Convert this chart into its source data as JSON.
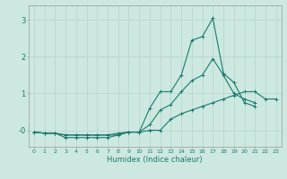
{
  "xlabel": "Humidex (Indice chaleur)",
  "bg_color": "#cce8e0",
  "grid_color": "#b8d8d0",
  "line_color": "#1a7a6e",
  "x_values": [
    0,
    1,
    2,
    3,
    4,
    5,
    6,
    7,
    8,
    9,
    10,
    11,
    12,
    13,
    14,
    15,
    16,
    17,
    18,
    19,
    20,
    21,
    22,
    23
  ],
  "line1": [
    -0.05,
    -0.08,
    -0.08,
    -0.13,
    -0.13,
    -0.13,
    -0.13,
    -0.13,
    -0.13,
    -0.05,
    -0.05,
    0.6,
    1.05,
    1.05,
    1.5,
    2.45,
    2.55,
    3.05,
    1.55,
    1.3,
    0.75,
    0.65,
    null,
    null
  ],
  "line2": [
    -0.05,
    -0.08,
    -0.08,
    -0.2,
    -0.2,
    -0.2,
    -0.2,
    -0.2,
    -0.13,
    -0.05,
    -0.05,
    0.15,
    0.55,
    0.7,
    1.05,
    1.35,
    1.5,
    1.95,
    1.5,
    1.0,
    0.85,
    0.75,
    null,
    null
  ],
  "line3": [
    -0.05,
    -0.08,
    -0.08,
    -0.13,
    -0.13,
    -0.13,
    -0.13,
    -0.13,
    -0.08,
    -0.05,
    -0.05,
    0.0,
    0.0,
    0.3,
    0.45,
    0.55,
    0.65,
    0.75,
    0.85,
    0.95,
    1.05,
    1.05,
    0.85,
    0.85
  ],
  "xlim": [
    -0.5,
    23.5
  ],
  "ylim": [
    -0.45,
    3.4
  ],
  "yticks": [
    0,
    1,
    2,
    3
  ],
  "ytick_labels": [
    "-0",
    "1",
    "2",
    "3"
  ],
  "xticks": [
    0,
    1,
    2,
    3,
    4,
    5,
    6,
    7,
    8,
    9,
    10,
    11,
    12,
    13,
    14,
    15,
    16,
    17,
    18,
    19,
    20,
    21,
    22,
    23
  ],
  "linewidth": 0.8,
  "markersize": 2.5,
  "xlabel_fontsize": 6.0,
  "xtick_fontsize": 4.5,
  "ytick_fontsize": 6.0
}
